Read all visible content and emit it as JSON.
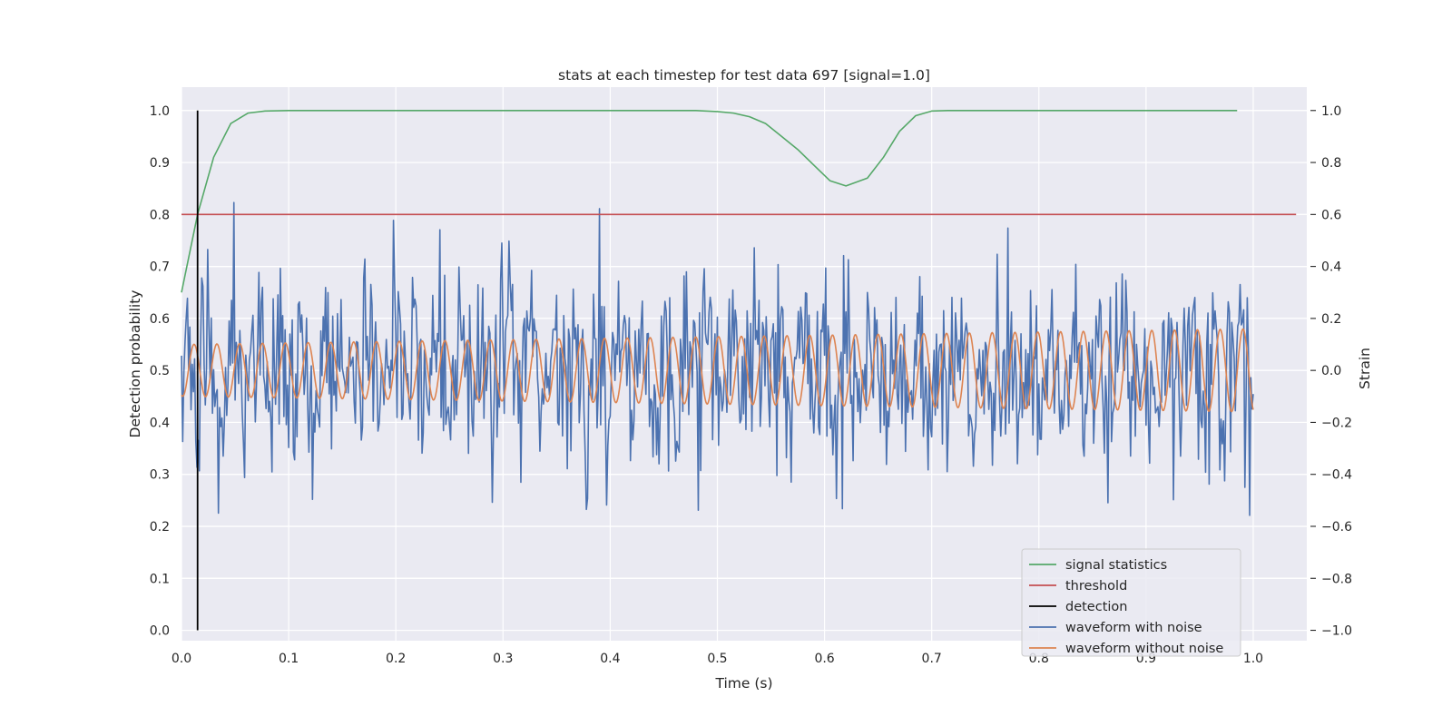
{
  "chart_data": {
    "type": "line",
    "title": "stats at each timestep for test data 697 [signal=1.0]",
    "xlabel": "Time (s)",
    "ylabel": "Detection probability",
    "ylabel_right": "Strain",
    "xlim": [
      0.0,
      1.05
    ],
    "ylim": [
      -0.02,
      1.045
    ],
    "ylim_right": [
      -1.04,
      1.09
    ],
    "x_ticks": [
      "0.0",
      "0.1",
      "0.2",
      "0.3",
      "0.4",
      "0.5",
      "0.6",
      "0.7",
      "0.8",
      "0.9",
      "1.0"
    ],
    "y_ticks": [
      "0.0",
      "0.1",
      "0.2",
      "0.3",
      "0.4",
      "0.5",
      "0.6",
      "0.7",
      "0.8",
      "0.9",
      "1.0"
    ],
    "y_ticks_right": [
      "−1.0",
      "−0.8",
      "−0.6",
      "−0.4",
      "−0.2",
      "0.0",
      "0.2",
      "0.4",
      "0.6",
      "0.8",
      "1.0"
    ],
    "grid": true,
    "legend_position": "lower-right",
    "series": [
      {
        "name": "signal statistics",
        "axis": "left",
        "color": "#55a868",
        "x": [
          0.0,
          0.015,
          0.03,
          0.046,
          0.062,
          0.078,
          0.1,
          0.2,
          0.3,
          0.4,
          0.48,
          0.5,
          0.515,
          0.53,
          0.545,
          0.56,
          0.575,
          0.59,
          0.605,
          0.62,
          0.64,
          0.655,
          0.67,
          0.685,
          0.7,
          0.715,
          0.73,
          0.8,
          0.9,
          0.985
        ],
        "y": [
          0.65,
          0.8,
          0.91,
          0.975,
          0.995,
          0.999,
          1.0,
          1.0,
          1.0,
          1.0,
          1.0,
          0.998,
          0.995,
          0.988,
          0.975,
          0.95,
          0.925,
          0.895,
          0.865,
          0.855,
          0.87,
          0.91,
          0.96,
          0.99,
          0.999,
          1.0,
          1.0,
          1.0,
          1.0,
          1.0
        ]
      },
      {
        "name": "threshold",
        "axis": "left",
        "color": "#c44e52",
        "x": [
          0.0,
          1.04
        ],
        "y": [
          0.8,
          0.8
        ]
      },
      {
        "name": "detection",
        "axis": "left",
        "color": "#000000",
        "x": [
          0.015,
          0.015
        ],
        "y": [
          0.0,
          1.0
        ]
      },
      {
        "name": "waveform with noise",
        "axis": "right",
        "color": "#4c72b0",
        "t_start": 0.0,
        "t_end": 1.0,
        "samples": 900,
        "seed": 697,
        "peak_min": -0.91,
        "peak_max": 1.0
      },
      {
        "name": "waveform without noise",
        "axis": "right",
        "color": "#dd8452",
        "t_start": 0.0,
        "t_end": 1.0,
        "cycles": 47,
        "amplitude_start": 0.1,
        "amplitude_end": 0.16
      }
    ]
  }
}
